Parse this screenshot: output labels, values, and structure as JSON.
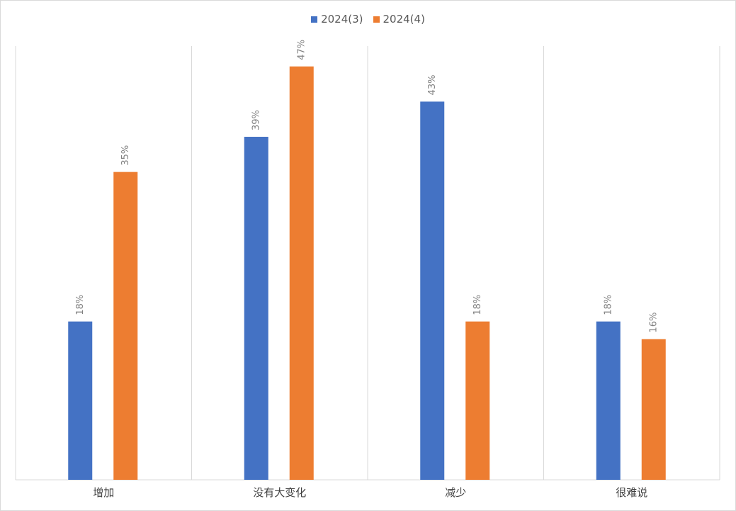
{
  "chart_data": {
    "type": "bar",
    "categories": [
      "增加",
      "没有大变化",
      "减少",
      "很难说"
    ],
    "series": [
      {
        "name": "2024(3)",
        "color": "#4472c4",
        "values": [
          18,
          39,
          43,
          18
        ],
        "labels": [
          "18%",
          "39%",
          "43%",
          "18%"
        ]
      },
      {
        "name": "2024(4)",
        "color": "#ed7d31",
        "values": [
          35,
          47,
          18,
          16
        ],
        "labels": [
          "35%",
          "47%",
          "18%",
          "16%"
        ]
      }
    ],
    "ylim": [
      0,
      50
    ],
    "grid": "vertical separators between categories",
    "legend": "top-center"
  }
}
